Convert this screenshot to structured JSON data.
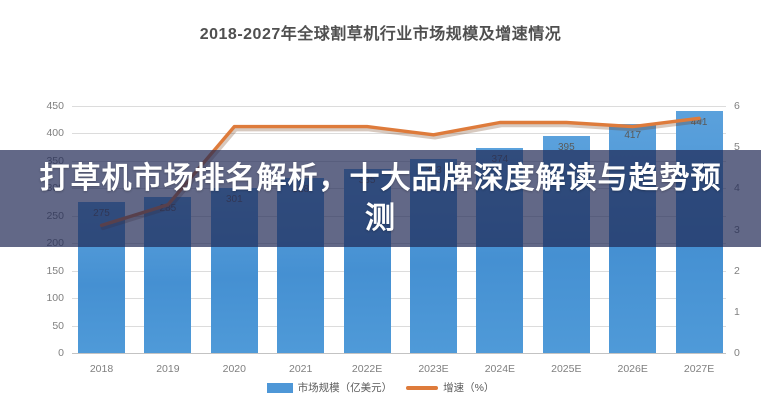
{
  "header": {
    "title": "2018-2027年全球割草机行业市场规模及增速情况"
  },
  "overlay": {
    "text": "打草机市场排名解析，十大品牌深度解读与趋势预测",
    "lines": [
      "打草机市场排名解析，十大品牌深度解读与趋势预",
      "测"
    ],
    "background": "#202854",
    "text_color": "#ffffff"
  },
  "chart_data": {
    "type": "bar",
    "title": "2018-2027年全球割草机行业市场规模及增速情况",
    "categories": [
      "2018",
      "2019",
      "2020",
      "2021",
      "2022E",
      "2023E",
      "2024E",
      "2025E",
      "2026E",
      "2027E"
    ],
    "series": [
      {
        "name": "市场规模（亿美元）",
        "type": "bar",
        "axis": "left",
        "color": "#4e97d7",
        "values": [
          275,
          285,
          301,
          318,
          335,
          353,
          374,
          395,
          417,
          441
        ]
      },
      {
        "name": "增速（%）",
        "type": "line",
        "axis": "right",
        "color": "#de7b3b",
        "values": [
          3.1,
          3.6,
          5.5,
          5.5,
          5.5,
          5.3,
          5.6,
          5.6,
          5.5,
          5.7
        ]
      }
    ],
    "left_axis": {
      "min": 0,
      "max": 450,
      "step": 50
    },
    "right_axis": {
      "min": 0,
      "max": 6,
      "step": 1
    },
    "grid": true,
    "legend_position": "bottom",
    "data_labels": true
  }
}
